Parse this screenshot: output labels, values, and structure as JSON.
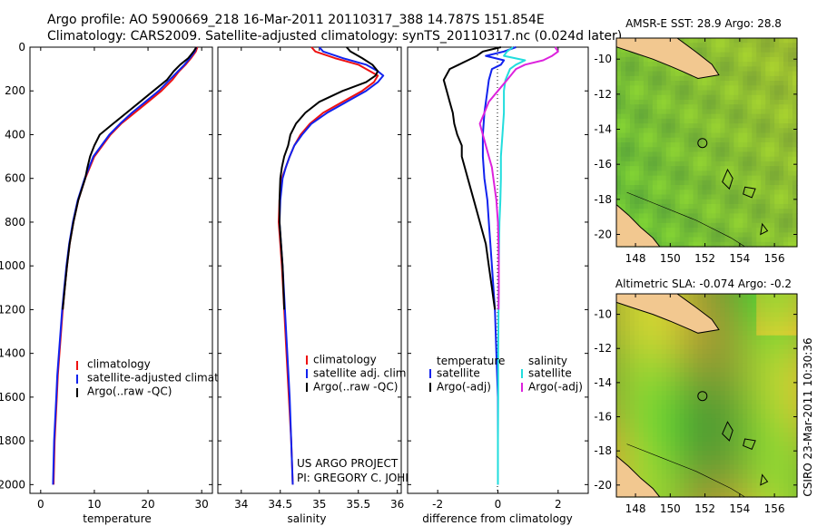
{
  "header": {
    "line1": "Argo profile: AO 5900669_218 16-Mar-2011 20110317_388 14.787S 151.854E",
    "line2": "Climatology: CARS2009. Satellite-adjusted climatology: synTS_20110317.nc (0.024d later)"
  },
  "depth_ticks": [
    "0",
    "200",
    "400",
    "600",
    "800",
    "1000",
    "1200",
    "1400",
    "1600",
    "1800",
    "2000"
  ],
  "chart_data": [
    {
      "type": "line",
      "id": "temperature",
      "xlabel": "temperature",
      "ylabel": "",
      "xlim": [
        -2,
        32
      ],
      "ylim": [
        0,
        2040
      ],
      "x_ticks": [
        "0",
        "10",
        "20",
        "30"
      ],
      "legend": [
        "climatology",
        "satellite-adjusted climatology",
        "Argo(..raw -QC)"
      ],
      "series": [
        {
          "name": "climatology",
          "color": "#ee1111",
          "depth": [
            0,
            20,
            50,
            80,
            110,
            150,
            200,
            250,
            300,
            350,
            400,
            500,
            600,
            700,
            800,
            900,
            1000,
            1100,
            1200,
            1300,
            1400,
            1500,
            1600,
            1700,
            1800,
            1900,
            2000
          ],
          "values": [
            29.2,
            28.9,
            28.0,
            27.0,
            25.8,
            24.5,
            22.5,
            20.0,
            17.5,
            15.0,
            13.0,
            10.0,
            8.3,
            7.0,
            6.1,
            5.4,
            4.9,
            4.5,
            4.1,
            3.8,
            3.5,
            3.2,
            3.0,
            2.8,
            2.6,
            2.5,
            2.4
          ]
        },
        {
          "name": "satellite-adjusted climatology",
          "color": "#1122ee",
          "depth": [
            0,
            20,
            50,
            80,
            110,
            150,
            200,
            250,
            300,
            350,
            400,
            500,
            600,
            700,
            800,
            900,
            1000,
            1100,
            1200,
            1300,
            1400,
            1500,
            1600,
            1700,
            1800,
            1900,
            2000
          ],
          "values": [
            29.0,
            28.7,
            27.8,
            26.8,
            25.6,
            24.0,
            22.0,
            19.5,
            17.0,
            14.8,
            12.8,
            9.8,
            8.2,
            6.9,
            6.0,
            5.3,
            4.8,
            4.4,
            4.0,
            3.7,
            3.4,
            3.1,
            2.9,
            2.7,
            2.5,
            2.4,
            2.3
          ]
        },
        {
          "name": "Argo(..raw -QC)",
          "color": "#000000",
          "depth": [
            0,
            20,
            50,
            80,
            110,
            150,
            200,
            250,
            300,
            350,
            400,
            450,
            500,
            550,
            600,
            700,
            800,
            900,
            1000,
            1100,
            1200
          ],
          "values": [
            29.0,
            28.5,
            27.5,
            26.0,
            24.8,
            23.5,
            21.0,
            18.5,
            16.0,
            13.5,
            11.0,
            10.0,
            9.2,
            8.7,
            8.3,
            7.0,
            6.1,
            5.4,
            4.9,
            4.5,
            4.1
          ]
        }
      ]
    },
    {
      "type": "line",
      "id": "salinity",
      "xlabel": "salinity",
      "xlim": [
        33.7,
        36.05
      ],
      "ylim": [
        0,
        2040
      ],
      "x_ticks": [
        "34",
        "34.5",
        "35",
        "35.5",
        "36"
      ],
      "legend": [
        "climatology",
        "satellite adj. clim.",
        "Argo(..raw -QC)"
      ],
      "series": [
        {
          "name": "climatology",
          "color": "#ee1111",
          "depth": [
            0,
            20,
            50,
            80,
            110,
            130,
            160,
            200,
            250,
            300,
            350,
            400,
            450,
            500,
            550,
            600,
            700,
            800,
            900,
            1000,
            1200,
            1400,
            1600,
            1800,
            2000
          ],
          "values": [
            34.9,
            34.95,
            35.2,
            35.5,
            35.65,
            35.75,
            35.7,
            35.55,
            35.3,
            35.05,
            34.88,
            34.76,
            34.68,
            34.62,
            34.57,
            34.52,
            34.49,
            34.48,
            34.5,
            34.52,
            34.55,
            34.58,
            34.61,
            34.64,
            34.66
          ]
        },
        {
          "name": "satellite adj. clim.",
          "color": "#1122ee",
          "depth": [
            0,
            20,
            50,
            80,
            110,
            130,
            160,
            200,
            250,
            300,
            350,
            400,
            450,
            500,
            550,
            600,
            700,
            800,
            900,
            1000,
            1200,
            1400,
            1600,
            1800,
            2000
          ],
          "values": [
            35.0,
            35.05,
            35.3,
            35.6,
            35.75,
            35.82,
            35.75,
            35.6,
            35.35,
            35.1,
            34.9,
            34.78,
            34.68,
            34.62,
            34.57,
            34.53,
            34.5,
            34.49,
            34.51,
            34.53,
            34.56,
            34.59,
            34.62,
            34.64,
            34.66
          ]
        },
        {
          "name": "Argo(..raw -QC)",
          "color": "#000000",
          "depth": [
            0,
            20,
            50,
            80,
            110,
            130,
            160,
            200,
            250,
            300,
            350,
            400,
            450,
            500,
            550,
            600,
            700,
            800,
            900,
            1000,
            1100,
            1200
          ],
          "values": [
            35.35,
            35.4,
            35.55,
            35.68,
            35.75,
            35.72,
            35.6,
            35.3,
            35.0,
            34.82,
            34.7,
            34.63,
            34.6,
            34.55,
            34.52,
            34.5,
            34.49,
            34.49,
            34.51,
            34.53,
            34.54,
            34.55
          ]
        }
      ],
      "annotation": [
        "US ARGO PROJECT",
        "PI: GREGORY C. JOHNSON"
      ]
    },
    {
      "type": "line",
      "id": "difference",
      "xlabel": "difference from climatology",
      "xlim": [
        -3,
        3
      ],
      "ylim": [
        0,
        2040
      ],
      "x_ticks": [
        "-2",
        "0",
        "2"
      ],
      "legend_left": {
        "title": "temperature",
        "items": [
          "satellite",
          "Argo(-adj)"
        ]
      },
      "legend_right": {
        "title": "salinity",
        "items": [
          "satellite",
          "Argo(-adj)"
        ]
      },
      "series": [
        {
          "name": "temperature satellite",
          "color": "#1122ee",
          "depth": [
            0,
            20,
            40,
            60,
            80,
            100,
            150,
            200,
            300,
            400,
            500,
            600,
            700,
            800,
            900,
            1000,
            1200,
            1400,
            1600,
            1800,
            2000
          ],
          "values": [
            0.6,
            0.2,
            -0.4,
            0.2,
            0.1,
            -0.2,
            -0.3,
            -0.35,
            -0.45,
            -0.5,
            -0.5,
            -0.45,
            -0.35,
            -0.3,
            -0.25,
            -0.2,
            -0.1,
            -0.05,
            0,
            0,
            0
          ]
        },
        {
          "name": "temperature Argo(-adj)",
          "color": "#000000",
          "depth": [
            0,
            20,
            40,
            60,
            80,
            100,
            150,
            200,
            250,
            300,
            350,
            400,
            450,
            500,
            550,
            600,
            700,
            800,
            900,
            1000,
            1100,
            1150,
            1200
          ],
          "values": [
            0.1,
            -0.5,
            -0.7,
            -1.0,
            -1.3,
            -1.6,
            -1.8,
            -1.7,
            -1.6,
            -1.5,
            -1.45,
            -1.35,
            -1.2,
            -1.2,
            -1.1,
            -1.0,
            -0.8,
            -0.6,
            -0.4,
            -0.3,
            -0.2,
            -0.15,
            -0.1
          ]
        },
        {
          "name": "salinity satellite",
          "color": "#22dddd",
          "depth": [
            0,
            20,
            40,
            60,
            80,
            100,
            150,
            200,
            300,
            400,
            500,
            600,
            700,
            800,
            900,
            1000,
            1200,
            1400,
            1600,
            1800,
            2000
          ],
          "values": [
            0.5,
            0.3,
            0.2,
            0.9,
            0.6,
            0.4,
            0.25,
            0.2,
            0.2,
            0.15,
            0.1,
            0.1,
            0.08,
            0.05,
            0.04,
            0.03,
            0.02,
            0.01,
            0.01,
            0.0,
            0.0
          ]
        },
        {
          "name": "salinity Argo(-adj)",
          "color": "#dd22dd",
          "depth": [
            0,
            20,
            40,
            60,
            80,
            100,
            150,
            200,
            250,
            300,
            350,
            400,
            450,
            500,
            550,
            600,
            700,
            800,
            900,
            1000,
            1100,
            1200
          ],
          "values": [
            1.9,
            2.0,
            1.8,
            1.5,
            0.9,
            0.6,
            0.3,
            0.0,
            -0.3,
            -0.45,
            -0.6,
            -0.5,
            -0.4,
            -0.3,
            -0.2,
            -0.15,
            -0.05,
            0.0,
            0.02,
            0.03,
            0.03,
            0.02
          ]
        }
      ]
    },
    {
      "type": "heatmap",
      "id": "amsre-sst",
      "title": "AMSR-E SST: 28.9 Argo: 28.8",
      "x_ticks": [
        "148",
        "150",
        "152",
        "154",
        "156"
      ],
      "y_ticks": [
        "-10",
        "-12",
        "-14",
        "-16",
        "-18",
        "-20"
      ],
      "xlim": [
        146.9,
        157.3
      ],
      "ylim": [
        -20.7,
        -8.8
      ],
      "argo_position": [
        151.854,
        -14.787
      ]
    },
    {
      "type": "heatmap",
      "id": "altimetric-sla",
      "title": "Altimetric SLA: -0.074 Argo: -0.2",
      "x_ticks": [
        "148",
        "150",
        "152",
        "154",
        "156"
      ],
      "y_ticks": [
        "-10",
        "-12",
        "-14",
        "-16",
        "-18",
        "-20"
      ],
      "xlim": [
        146.9,
        157.3
      ],
      "ylim": [
        -20.7,
        -8.8
      ],
      "argo_position": [
        151.854,
        -14.787
      ]
    }
  ],
  "footer_stamp": "CSIRO 23-Mar-2011 10:30:36"
}
